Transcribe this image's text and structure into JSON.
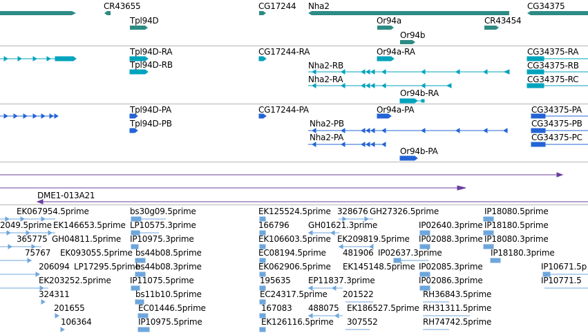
{
  "colors": {
    "gene": "#2e8b84",
    "mrna": "#00a3bd",
    "cds": "#2464d6",
    "scaffold": "#6a3f9e",
    "est": "#6ea6dc",
    "separator": "#b5b5b5"
  },
  "tracks": {
    "genes": {
      "labels": [
        "CR43655",
        "CG17244",
        "Nha2",
        "CG34375",
        "Tpl94D",
        "Or94a",
        "CR43454",
        "Or94b"
      ]
    },
    "mrna": {
      "labels": [
        "Tpl94D-RA",
        "CG17244-RA",
        "Or94a-RA",
        "CG34375-RA",
        "Tpl94D-RB",
        "Nha2-RB",
        "CG34375-RB",
        "Nha2-RA",
        "CG34375-RC",
        "Or94b-RA"
      ]
    },
    "cds": {
      "labels": [
        "Tpl94D-PA",
        "CG17244-PA",
        "Or94a-PA",
        "CG34375-PA",
        "Tpl94D-PB",
        "Nha2-PB",
        "CG34375-PB",
        "Nha2-PA",
        "CG34375-PC",
        "Or94b-PA"
      ]
    },
    "scaffold": {
      "labels": [
        "DME1-013A21"
      ]
    },
    "est": {
      "labels": [
        "EK067954.5prime",
        "bs30g09.5prime",
        "EK125524.5prime",
        "328676",
        "GH27326.5prime",
        "IP18080.5prime",
        "2049.5prime",
        "EK146653.5prime",
        "LP10575.3prime",
        "166796",
        "GH01621.3prime",
        "IP02640.3prime",
        "IP18180.5prime",
        "365775",
        "GH04811.5prime",
        "IP10975.3prime",
        "EK106603.5prime",
        "EK209819.5prime",
        "IP02088.3prime",
        "IP18080.3prime",
        "75767",
        "EK093055.5prime",
        "bs44b08.5prime",
        "EC08194.5prime",
        "481906",
        "IP02637.3prime",
        "IP18180.3prime",
        "206094",
        "LP17295.5prime",
        "bs44b08.3prime",
        "EK062906.5prime",
        "EK145148.5prime",
        "IP02085.3prime",
        "IP10671.5p",
        "EK203252.5prime",
        "IP11075.5prime",
        "195635",
        "EP11837.3prime",
        "IP02086.3prime",
        "IP10771.5",
        "324311",
        "bs11b10.5prime",
        "EC24317.5prime",
        "201522",
        "RH36843.5prime",
        "201655",
        "EC01446.5prime",
        "167083",
        "488075",
        "EK186527.5prime",
        "RH31311.5prime",
        "106364",
        "IP10975.5prime",
        "EK126116.5prime",
        "307552",
        "RH74742.5prime"
      ]
    }
  }
}
